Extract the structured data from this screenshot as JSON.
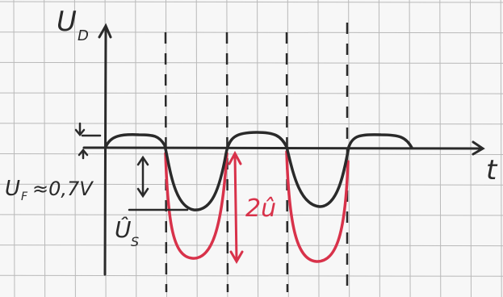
{
  "labels": {
    "y_axis": "U",
    "y_axis_sub": "D",
    "x_axis": "t",
    "forward_voltage": "U",
    "forward_voltage_sub": "F",
    "forward_voltage_value": "≈0,7V",
    "source_peak": "Û",
    "source_peak_sub": "S",
    "double_amplitude": "2û"
  },
  "colors": {
    "paper": "#f7f7f7",
    "grid": "#b9b9b9",
    "ink": "#2a2a2a",
    "red": "#d8324a"
  }
}
